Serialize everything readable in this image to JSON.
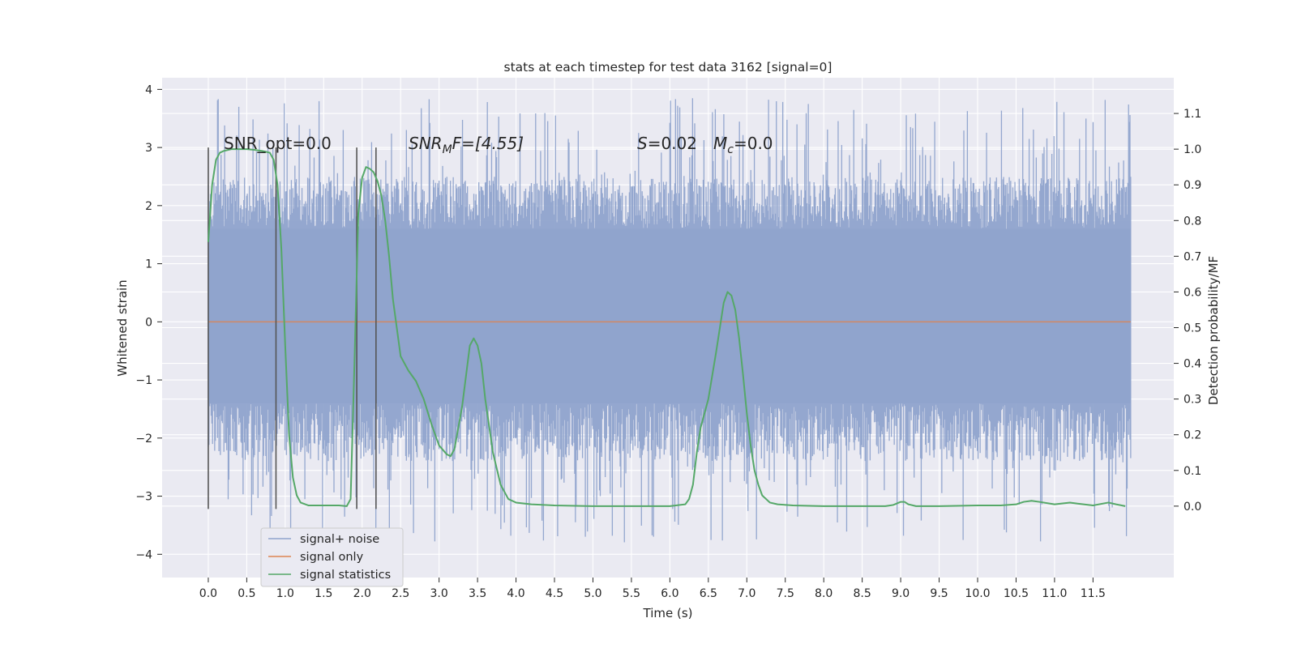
{
  "chart_data": {
    "type": "line",
    "title": "stats at each timestep for test data 3162 [signal=0]",
    "xlabel": "Time (s)",
    "ylabel": "Whitened strain",
    "ylabel_right": "Detection probability/MF",
    "xlim": [
      -0.6,
      12.55
    ],
    "ylim": [
      -4.4,
      4.2
    ],
    "ylim_right": [
      -0.2,
      1.2
    ],
    "x_ticks": [
      0.0,
      0.5,
      1.0,
      1.5,
      2.0,
      2.5,
      3.0,
      3.5,
      4.0,
      4.5,
      5.0,
      5.5,
      6.0,
      6.5,
      7.0,
      7.5,
      8.0,
      8.5,
      9.0,
      9.5,
      10.0,
      10.5,
      11.0,
      11.5
    ],
    "x_tick_labels": [
      "0.0",
      "0.5",
      "1.0",
      "1.5",
      "2.0",
      "2.5",
      "3.0",
      "3.5",
      "4.0",
      "4.5",
      "5.0",
      "5.5",
      "6.0",
      "6.5",
      "7.0",
      "7.5",
      "8.0",
      "8.5",
      "9.0",
      "9.5",
      "10.0",
      "10.5",
      "11.0",
      "11.5"
    ],
    "y_ticks": [
      -4,
      -3,
      -2,
      -1,
      0,
      1,
      2,
      3,
      4
    ],
    "y_tick_labels": [
      "−4",
      "−3",
      "−2",
      "−1",
      "0",
      "1",
      "2",
      "3",
      "4"
    ],
    "y_right_ticks": [
      0.0,
      0.1,
      0.2,
      0.3,
      0.4,
      0.5,
      0.6,
      0.7,
      0.8,
      0.9,
      1.0,
      1.1
    ],
    "y_right_tick_labels": [
      "0.0",
      "0.1",
      "0.2",
      "0.3",
      "0.4",
      "0.5",
      "0.6",
      "0.7",
      "0.8",
      "0.9",
      "1.0",
      "1.1"
    ],
    "grid": true,
    "legend_position": "bottom-left",
    "colors": {
      "background": "#eaeaf2",
      "grid": "#ffffff",
      "noise": "#8fa3cc",
      "signal": "#dd8452",
      "statistics": "#55a868",
      "vline": "#555555"
    },
    "series": [
      {
        "name": "signal+ noise",
        "kind": "noise-band",
        "x_range": [
          0.0,
          11.99
        ],
        "typical_range": [
          -1.4,
          1.6
        ],
        "peak_range": [
          -3.8,
          3.85
        ]
      },
      {
        "name": "signal only",
        "axis": "left",
        "x": [
          0.0,
          11.99
        ],
        "y": [
          0.0,
          0.0
        ]
      },
      {
        "name": "signal statistics",
        "axis": "right",
        "x": [
          0.0,
          0.05,
          0.1,
          0.15,
          0.2,
          0.3,
          0.4,
          0.5,
          0.6,
          0.7,
          0.8,
          0.85,
          0.9,
          0.95,
          1.0,
          1.05,
          1.1,
          1.15,
          1.2,
          1.3,
          1.5,
          1.7,
          1.8,
          1.85,
          1.9,
          1.95,
          2.0,
          2.05,
          2.1,
          2.15,
          2.2,
          2.25,
          2.3,
          2.35,
          2.4,
          2.5,
          2.6,
          2.7,
          2.8,
          2.9,
          3.0,
          3.1,
          3.15,
          3.2,
          3.3,
          3.4,
          3.45,
          3.5,
          3.55,
          3.6,
          3.7,
          3.8,
          3.9,
          4.0,
          4.2,
          4.5,
          5.0,
          5.5,
          6.0,
          6.2,
          6.25,
          6.3,
          6.35,
          6.4,
          6.5,
          6.6,
          6.7,
          6.75,
          6.8,
          6.85,
          6.9,
          6.95,
          7.0,
          7.05,
          7.1,
          7.15,
          7.2,
          7.3,
          7.4,
          7.6,
          8.0,
          8.5,
          8.8,
          8.9,
          9.0,
          9.05,
          9.1,
          9.2,
          9.5,
          10.0,
          10.3,
          10.5,
          10.6,
          10.7,
          10.8,
          11.0,
          11.2,
          11.3,
          11.5,
          11.7,
          11.8,
          11.92
        ],
        "y": [
          0.74,
          0.9,
          0.97,
          0.99,
          0.995,
          1.0,
          1.0,
          1.0,
          0.998,
          0.995,
          0.99,
          0.97,
          0.9,
          0.72,
          0.45,
          0.2,
          0.08,
          0.03,
          0.01,
          0.002,
          0.002,
          0.002,
          0.0,
          0.02,
          0.4,
          0.82,
          0.92,
          0.95,
          0.945,
          0.935,
          0.91,
          0.87,
          0.8,
          0.7,
          0.58,
          0.42,
          0.38,
          0.35,
          0.3,
          0.23,
          0.17,
          0.145,
          0.14,
          0.16,
          0.28,
          0.45,
          0.47,
          0.45,
          0.4,
          0.3,
          0.15,
          0.06,
          0.02,
          0.01,
          0.005,
          0.002,
          0.0,
          0.0,
          0.0,
          0.005,
          0.02,
          0.06,
          0.15,
          0.22,
          0.3,
          0.43,
          0.57,
          0.6,
          0.59,
          0.55,
          0.47,
          0.37,
          0.26,
          0.17,
          0.1,
          0.06,
          0.03,
          0.01,
          0.005,
          0.002,
          0.0,
          0.0,
          0.0,
          0.003,
          0.012,
          0.012,
          0.005,
          0.0,
          0.0,
          0.002,
          0.002,
          0.005,
          0.012,
          0.015,
          0.012,
          0.005,
          0.01,
          0.007,
          0.002,
          0.01,
          0.005,
          0.0
        ]
      }
    ],
    "vertical_lines": [
      {
        "x": 0.0,
        "y_from": -3.22,
        "y_to": 3.0
      },
      {
        "x": 0.88,
        "y_from": -3.22,
        "y_to": 3.0
      },
      {
        "x": 1.93,
        "y_from": -3.22,
        "y_to": 3.0
      },
      {
        "x": 2.18,
        "y_from": -3.22,
        "y_to": 3.0
      }
    ],
    "annotations": {
      "snr_opt": "SNR_opt=0.0",
      "snr_mf_main": "SNR",
      "snr_mf_sub": "M",
      "snr_mf_rest": "F=[4.55]",
      "s_main": "S",
      "s_rest": "=0.02",
      "mc_main": "M",
      "mc_sub": "c",
      "mc_rest": "=0.0"
    }
  }
}
